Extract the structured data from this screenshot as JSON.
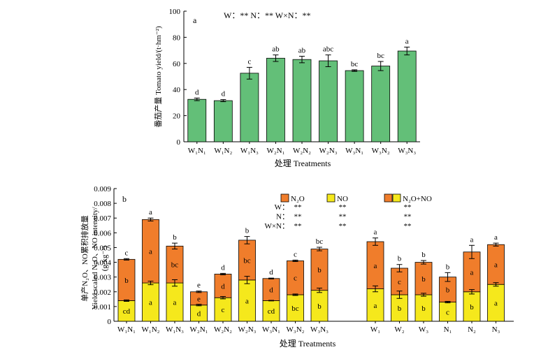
{
  "chart_data": [
    {
      "type": "bar",
      "categories": [
        "W₁N₁",
        "W₁N₂",
        "W₁N₃",
        "W₂N₁",
        "W₂N₂",
        "W₂N₃",
        "W₃N₁",
        "W₃N₂",
        "W₃N₃"
      ],
      "values": [
        32.5,
        31.5,
        52.5,
        64,
        63,
        62,
        54.5,
        58,
        69.5
      ],
      "errors": [
        1,
        0.8,
        4.5,
        2.5,
        2.5,
        4.5,
        0.6,
        3.5,
        3
      ],
      "letters": [
        "d",
        "d",
        "c",
        "ab",
        "ab",
        "abc",
        "bc",
        "bc",
        "a"
      ],
      "color": "#63bf78",
      "panel_label": "a",
      "significance": "W：**  N：**  W×N：**",
      "ylabel": "番茄产量 Tomato yield/(t·hm⁻²)",
      "xlabel": "处理 Treatments",
      "ylim": [
        0,
        100
      ],
      "yticks": [
        "0",
        "20",
        "40",
        "60",
        "80",
        "100"
      ]
    },
    {
      "type": "bar",
      "stacked": true,
      "panel_label": "b",
      "categories": [
        "W₁N₁",
        "W₁N₂",
        "W₁N₃",
        "W₂N₁",
        "W₂N₂",
        "W₂N₃",
        "W₃N₁",
        "W₃N₂",
        "W₃N₃",
        "W₁",
        "W₂",
        "W₃",
        "N₁",
        "N₂",
        "N₃"
      ],
      "group_gap_after": 8,
      "series": [
        {
          "name": "NO",
          "color": "#f5e81c",
          "values": [
            0.0014,
            0.0026,
            0.0026,
            0.0011,
            0.0016,
            0.0028,
            0.0014,
            0.0018,
            0.0021,
            0.0022,
            0.0018,
            0.0018,
            0.0013,
            0.002,
            0.0025
          ],
          "errors": [
            5e-05,
            0.00012,
            0.00022,
            5e-05,
            8e-05,
            0.00025,
            2e-05,
            5e-05,
            0.00015,
            0.0002,
            0.00025,
            0.0001,
            5e-05,
            0.00015,
            0.00012
          ],
          "letters": [
            "cd",
            "a",
            "a",
            "d",
            "c",
            "a",
            "cd",
            "bc",
            "b",
            "a",
            "b",
            "b",
            "c",
            "b",
            "a"
          ]
        },
        {
          "name": "N₂O",
          "color": "#f07d2b",
          "values": [
            0.0028,
            0.0043,
            0.0025,
            0.0009,
            0.0016,
            0.0027,
            0.0015,
            0.0023,
            0.0028,
            0.0032,
            0.0018,
            0.0022,
            0.0017,
            0.0027,
            0.0027
          ],
          "letters": [
            "b",
            "a",
            "bc",
            "e",
            "d",
            "bc",
            "d",
            "c",
            "b",
            "a",
            "c",
            "b",
            "b",
            "a",
            "a"
          ]
        }
      ],
      "total_errors": [
        5e-05,
        0.0001,
        0.0002,
        5e-05,
        5e-05,
        0.00025,
        3e-05,
        5e-05,
        0.00012,
        0.00025,
        0.00025,
        0.00012,
        0.0003,
        0.00045,
        0.0001
      ],
      "total_letters": [
        "c",
        "a",
        "b",
        "e",
        "d",
        "b",
        "d",
        "c",
        "bc",
        "a",
        "b",
        "b",
        "b",
        "a",
        "a"
      ],
      "combined_legend": "N₂O+NO",
      "significance_rows": [
        {
          "label": "W：",
          "values": [
            "**",
            "**",
            "**"
          ]
        },
        {
          "label": "N：",
          "values": [
            "**",
            "**",
            "**"
          ]
        },
        {
          "label": "W×N：",
          "values": [
            "**",
            "**",
            "**"
          ]
        }
      ],
      "ylabel_lines": [
        "单产N₂O、NO累积排放量",
        "Yield scaled N₂O、NO intensity/",
        "(g·kg⁻¹)"
      ],
      "xlabel": "处理 Treatments",
      "ylim": [
        0,
        0.009
      ],
      "yticks": [
        "0",
        "0.001",
        "0.002",
        "0.003",
        "0.004",
        "0.005",
        "0.006",
        "0.007",
        "0.008",
        "0.009"
      ]
    }
  ]
}
